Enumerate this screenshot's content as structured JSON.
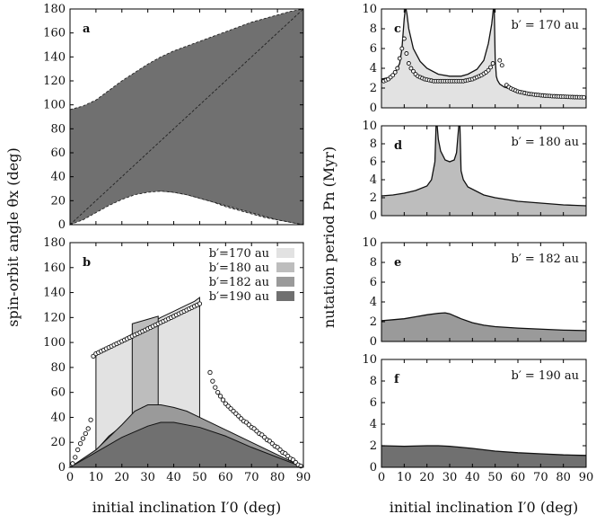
{
  "figure": {
    "left_ylabel": "spin-orbit angle θx (deg)",
    "right_ylabel": "nutation period Pn (Myr)",
    "left_xlabel": "initial inclination I′0 (deg)",
    "right_xlabel": "initial inclination I′0 (deg)"
  },
  "colors": {
    "b170": "#e2e2e2",
    "b180": "#bdbdbd",
    "b182": "#9a9a9a",
    "b190": "#707070",
    "line": "#111111"
  },
  "chart_data": [
    {
      "id": "a",
      "type": "area",
      "panel_label": "a",
      "title": "",
      "xlabel": "initial inclination I′0 (deg)",
      "ylabel": "spin-orbit angle θx (deg)",
      "xlim": [
        0,
        90
      ],
      "ylim": [
        0,
        180
      ],
      "xticks": [
        0,
        10,
        20,
        30,
        40,
        50,
        60,
        70,
        80,
        90
      ],
      "yticks": [
        0,
        20,
        40,
        60,
        80,
        100,
        120,
        140,
        160,
        180
      ],
      "x": [
        0,
        5,
        10,
        15,
        20,
        25,
        30,
        35,
        40,
        45,
        50,
        55,
        60,
        65,
        70,
        75,
        80,
        85,
        90
      ],
      "series": [
        {
          "name": "b′=170 au",
          "color_key": "b170",
          "lower": [
            0,
            9,
            20,
            31,
            41,
            48,
            52,
            52,
            48,
            42,
            36,
            30,
            24,
            19,
            14,
            9,
            6,
            3,
            0
          ],
          "upper": [
            80,
            84,
            92,
            102,
            110,
            118,
            124,
            130,
            134,
            138,
            142,
            146,
            151,
            156,
            161,
            166,
            171,
            176,
            180
          ]
        },
        {
          "name": "b′=180 au",
          "color_key": "b180",
          "lower": [
            0,
            7,
            15,
            22,
            28,
            32,
            34,
            34,
            32,
            29,
            26,
            22,
            18,
            14,
            10,
            7,
            4,
            2,
            0
          ],
          "upper": [
            86,
            89,
            95,
            104,
            112,
            119,
            126,
            132,
            137,
            141,
            145,
            149,
            153,
            158,
            163,
            168,
            172,
            176,
            180
          ]
        },
        {
          "name": "b′=182 au",
          "color_key": "b182",
          "lower": [
            0,
            5,
            12,
            18,
            23,
            26,
            28,
            28,
            27,
            25,
            22,
            19,
            15,
            12,
            9,
            6,
            4,
            2,
            0
          ],
          "upper": [
            92,
            95,
            100,
            108,
            116,
            123,
            130,
            136,
            141,
            145,
            149,
            153,
            157,
            161,
            165,
            169,
            173,
            177,
            180
          ]
        },
        {
          "name": "b′=190 au",
          "color_key": "b190",
          "lower": [
            0,
            4,
            10,
            16,
            21,
            25,
            27,
            28,
            27,
            25,
            22,
            19,
            16,
            13,
            10,
            7,
            4,
            2,
            0
          ],
          "upper": [
            96,
            99,
            104,
            112,
            120,
            127,
            134,
            140,
            145,
            149,
            153,
            157,
            161,
            165,
            169,
            172,
            175,
            178,
            180
          ]
        }
      ]
    },
    {
      "id": "b",
      "type": "area",
      "panel_label": "b",
      "title": "",
      "xlabel": "initial inclination I′0 (deg)",
      "ylabel": "spin-orbit angle θx (deg)",
      "xlim": [
        0,
        90
      ],
      "ylim": [
        0,
        180
      ],
      "xticks": [
        0,
        10,
        20,
        30,
        40,
        50,
        60,
        70,
        80,
        90
      ],
      "yticks": [
        0,
        20,
        40,
        60,
        80,
        100,
        120,
        140,
        160,
        180
      ],
      "legend": [
        "b′=170 au",
        "b′=180 au",
        "b′=182 au",
        "b′=190 au"
      ],
      "legend_position": "top-right",
      "series": [
        {
          "name": "b′=170 au",
          "color_key": "b170",
          "x": [
            10,
            12,
            15,
            20,
            25,
            30,
            35,
            40,
            45,
            48,
            50,
            50,
            48,
            45,
            40,
            35,
            30,
            25,
            20,
            15,
            12,
            10
          ],
          "y": [
            92,
            94,
            97,
            102,
            108,
            114,
            120,
            125,
            130,
            133,
            136,
            33,
            34,
            36,
            38,
            40,
            40,
            38,
            33,
            25,
            18,
            13
          ]
        },
        {
          "name": "b′=180 au",
          "color_key": "b180",
          "x": [
            24,
            24,
            29,
            34,
            34,
            31,
            28,
            24
          ],
          "y": [
            28,
            115,
            118,
            121,
            45,
            47,
            48,
            28
          ]
        },
        {
          "name": "b′=182 au",
          "color_key": "b182",
          "x": [
            0,
            10,
            20,
            25,
            30,
            35,
            40,
            45,
            50,
            60,
            70,
            80,
            90
          ],
          "y": [
            0,
            14,
            34,
            45,
            50,
            50,
            48,
            45,
            40,
            30,
            20,
            10,
            0
          ]
        },
        {
          "name": "b′=190 au",
          "color_key": "b190",
          "x": [
            0,
            10,
            20,
            30,
            35,
            40,
            50,
            60,
            70,
            80,
            90
          ],
          "y": [
            0,
            12,
            24,
            33,
            36,
            36,
            32,
            25,
            16,
            8,
            0
          ]
        },
        {
          "name": "circles (analytic)",
          "type": "scatter",
          "x": [
            1,
            2,
            3,
            4,
            5,
            6,
            7,
            8,
            9,
            10,
            11,
            12,
            13,
            14,
            15,
            16,
            17,
            18,
            19,
            20,
            21,
            22,
            23,
            24,
            25,
            26,
            27,
            28,
            29,
            30,
            31,
            32,
            33,
            34,
            35,
            36,
            37,
            38,
            39,
            40,
            41,
            42,
            43,
            44,
            45,
            46,
            47,
            48,
            49,
            50,
            54,
            55,
            56,
            57,
            58,
            59,
            60,
            61,
            62,
            63,
            64,
            65,
            66,
            67,
            68,
            69,
            70,
            71,
            72,
            73,
            74,
            75,
            76,
            77,
            78,
            79,
            80,
            81,
            82,
            83,
            84,
            85,
            86,
            87,
            88,
            89
          ],
          "y": [
            3,
            8,
            14,
            19,
            23,
            27,
            31,
            38,
            89,
            91,
            92,
            93,
            94,
            95,
            96,
            97,
            98,
            99,
            100,
            101,
            102,
            103,
            104,
            105,
            106,
            107,
            108,
            109,
            110,
            111,
            112,
            113,
            114,
            115,
            116,
            117,
            118,
            119,
            120,
            121,
            122,
            123,
            124,
            125,
            126,
            127,
            128,
            129,
            130,
            131,
            76,
            69,
            64,
            60,
            57,
            54,
            51,
            49,
            47,
            45,
            43,
            41,
            39,
            37,
            36,
            34,
            32,
            31,
            29,
            27,
            26,
            24,
            22,
            21,
            19,
            17,
            16,
            14,
            12,
            11,
            9,
            7,
            6,
            4,
            2,
            1
          ]
        }
      ]
    },
    {
      "id": "c",
      "type": "area",
      "panel_label": "c",
      "annotation": "b′ = 170 au",
      "xlim": [
        0,
        90
      ],
      "ylim": [
        0,
        10
      ],
      "xticks": [
        0,
        10,
        20,
        30,
        40,
        50,
        60,
        70,
        80,
        90
      ],
      "yticks": [
        0,
        2,
        4,
        6,
        8,
        10
      ],
      "color_key": "b170",
      "x": [
        0,
        4,
        6,
        8,
        9,
        10,
        10.5,
        10.8,
        11.2,
        12,
        14,
        17,
        20,
        25,
        30,
        35,
        38,
        42,
        45,
        47,
        48.5,
        49.2,
        49.6,
        50,
        50.5,
        51,
        52,
        54,
        57,
        60,
        65,
        70,
        75,
        80,
        85,
        90
      ],
      "y": [
        2.9,
        3.1,
        3.5,
        4.5,
        6,
        9,
        10,
        10,
        9.5,
        8,
        6,
        4.7,
        4,
        3.4,
        3.2,
        3.2,
        3.4,
        3.9,
        4.8,
        6.5,
        8.5,
        10,
        10,
        5,
        3.2,
        2.8,
        2.4,
        2.1,
        1.9,
        1.7,
        1.5,
        1.4,
        1.3,
        1.2,
        1.15,
        1.1
      ],
      "circles": {
        "x": [
          1,
          2,
          3,
          4,
          5,
          6,
          7,
          8,
          9,
          10,
          11,
          12,
          13,
          14,
          15,
          16,
          17,
          18,
          19,
          20,
          21,
          22,
          23,
          24,
          25,
          26,
          27,
          28,
          29,
          30,
          31,
          32,
          33,
          34,
          35,
          36,
          37,
          38,
          39,
          40,
          41,
          42,
          43,
          44,
          45,
          46,
          47,
          48,
          49,
          52,
          53,
          55,
          56,
          57,
          58,
          59,
          60,
          61,
          62,
          63,
          64,
          65,
          66,
          67,
          68,
          69,
          70,
          71,
          72,
          73,
          74,
          75,
          76,
          77,
          78,
          79,
          80,
          81,
          82,
          83,
          84,
          85,
          86,
          87,
          88,
          89
        ],
        "y": [
          2.7,
          2.8,
          2.9,
          3.1,
          3.3,
          3.6,
          4,
          5,
          6,
          7,
          5.5,
          4.5,
          4,
          3.7,
          3.4,
          3.2,
          3.1,
          3,
          2.9,
          2.85,
          2.8,
          2.75,
          2.7,
          2.7,
          2.7,
          2.7,
          2.7,
          2.7,
          2.7,
          2.7,
          2.7,
          2.7,
          2.7,
          2.7,
          2.7,
          2.7,
          2.75,
          2.8,
          2.85,
          2.9,
          3.0,
          3.1,
          3.2,
          3.3,
          3.45,
          3.6,
          3.8,
          4.1,
          4.5,
          4.8,
          4.3,
          2.3,
          2.1,
          1.95,
          1.85,
          1.75,
          1.65,
          1.6,
          1.55,
          1.5,
          1.45,
          1.4,
          1.38,
          1.35,
          1.32,
          1.3,
          1.27,
          1.25,
          1.23,
          1.21,
          1.2,
          1.18,
          1.17,
          1.16,
          1.15,
          1.14,
          1.13,
          1.12,
          1.11,
          1.1,
          1.09,
          1.08,
          1.08,
          1.07,
          1.07,
          1.06
        ]
      }
    },
    {
      "id": "d",
      "type": "area",
      "panel_label": "d",
      "annotation": "b′ = 180 au",
      "xlim": [
        0,
        90
      ],
      "ylim": [
        0,
        10
      ],
      "xticks": [
        0,
        10,
        20,
        30,
        40,
        50,
        60,
        70,
        80,
        90
      ],
      "yticks": [
        0,
        2,
        4,
        6,
        8,
        10
      ],
      "color_key": "b180",
      "x": [
        0,
        5,
        10,
        15,
        20,
        22,
        23.5,
        24,
        24.5,
        25,
        26,
        28,
        30,
        32,
        33,
        33.5,
        34,
        34.5,
        35,
        36,
        38,
        45,
        50,
        55,
        60,
        65,
        70,
        75,
        80,
        85,
        90
      ],
      "y": [
        2.2,
        2.3,
        2.5,
        2.8,
        3.3,
        4,
        6,
        10,
        10,
        8.5,
        7.2,
        6.2,
        6.0,
        6.2,
        7,
        8.5,
        10,
        10,
        5,
        4,
        3.2,
        2.3,
        2,
        1.8,
        1.6,
        1.5,
        1.4,
        1.3,
        1.2,
        1.15,
        1.1
      ]
    },
    {
      "id": "e",
      "type": "area",
      "panel_label": "e",
      "annotation": "b′ = 182 au",
      "xlim": [
        0,
        90
      ],
      "ylim": [
        0,
        10
      ],
      "xticks": [
        0,
        10,
        20,
        30,
        40,
        50,
        60,
        70,
        80,
        90
      ],
      "yticks": [
        0,
        2,
        4,
        6,
        8,
        10
      ],
      "color_key": "b182",
      "x": [
        0,
        5,
        10,
        15,
        20,
        25,
        28,
        30,
        35,
        40,
        45,
        50,
        60,
        70,
        80,
        90
      ],
      "y": [
        2.1,
        2.2,
        2.3,
        2.5,
        2.7,
        2.85,
        2.9,
        2.8,
        2.3,
        1.9,
        1.65,
        1.5,
        1.35,
        1.25,
        1.15,
        1.1
      ]
    },
    {
      "id": "f",
      "type": "area",
      "panel_label": "f",
      "annotation": "b′ = 190 au",
      "xlim": [
        0,
        90
      ],
      "ylim": [
        0,
        10
      ],
      "xticks": [
        0,
        10,
        20,
        30,
        40,
        50,
        60,
        70,
        80,
        90
      ],
      "yticks": [
        0,
        2,
        4,
        6,
        8,
        10
      ],
      "color_key": "b190",
      "x": [
        0,
        10,
        20,
        25,
        30,
        40,
        50,
        60,
        70,
        80,
        90
      ],
      "y": [
        2.0,
        1.95,
        2.0,
        2.0,
        1.95,
        1.75,
        1.5,
        1.35,
        1.25,
        1.15,
        1.1
      ]
    }
  ]
}
